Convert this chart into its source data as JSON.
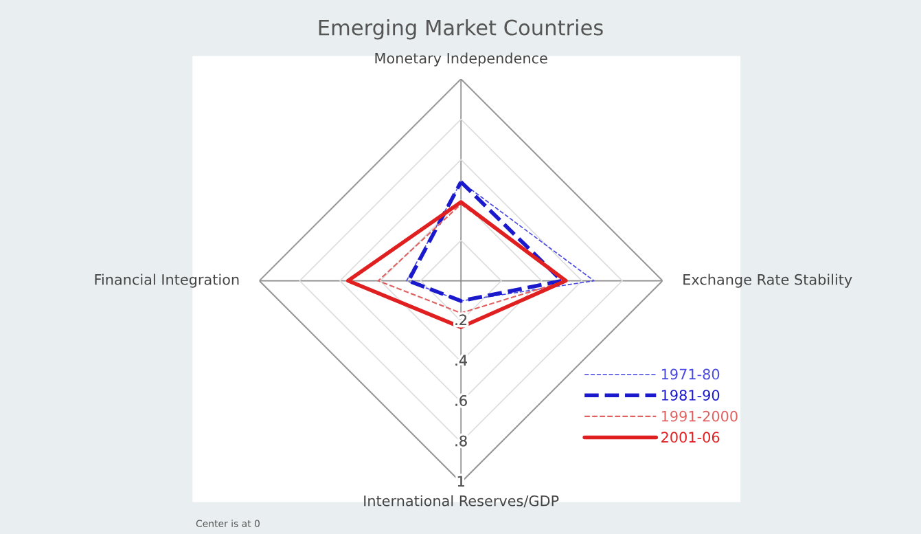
{
  "chart_data": {
    "type": "radar",
    "title": "Emerging Market Countries",
    "categories": [
      "Monetary Independence",
      "Exchange Rate Stability",
      "International Reserves/GDP",
      "Financial Integration"
    ],
    "series": [
      {
        "name": "1971-80",
        "color": "#4a4ae0",
        "line_style": "dashed",
        "values": [
          0.49,
          0.66,
          0.1,
          0.27
        ]
      },
      {
        "name": "1981-90",
        "color": "#1a1acc",
        "line_style": "dashed",
        "values": [
          0.49,
          0.5,
          0.1,
          0.26
        ]
      },
      {
        "name": "1991-2000",
        "color": "#e06060",
        "line_style": "dashed",
        "values": [
          0.38,
          0.52,
          0.16,
          0.41
        ]
      },
      {
        "name": "2001-06",
        "color": "#e02020",
        "line_style": "solid",
        "values": [
          0.39,
          0.52,
          0.23,
          0.56
        ]
      }
    ],
    "ylim": [
      0,
      1
    ],
    "yticks": [
      {
        "value": 0.2,
        "label": ".2"
      },
      {
        "value": 0.4,
        "label": ".4"
      },
      {
        "value": 0.6,
        "label": ".6"
      },
      {
        "value": 0.8,
        "label": ".8"
      },
      1
    ],
    "grid": true,
    "legend": "bottom right",
    "marker": "none",
    "annotations": [
      "Center is at 0"
    ]
  }
}
